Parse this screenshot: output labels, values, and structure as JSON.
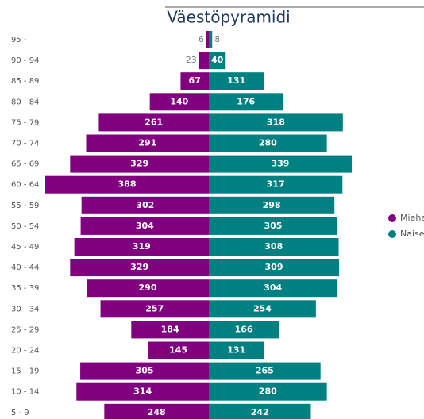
{
  "chart_data": {
    "type": "bar",
    "orientation": "diverging",
    "title": "Väestöpyramidi",
    "categories": [
      "95 -",
      "90 - 94",
      "85 - 89",
      "80 - 84",
      "75 - 79",
      "70 - 74",
      "65 - 69",
      "60 - 64",
      "55 - 59",
      "50 - 54",
      "45 - 49",
      "40 - 44",
      "35 - 39",
      "30 - 34",
      "25 - 29",
      "20 - 24",
      "15 - 19",
      "10 - 14",
      "5 - 9"
    ],
    "series": [
      {
        "name": "Miehet",
        "color": "#800080",
        "side": "left",
        "values": [
          6,
          23,
          67,
          140,
          261,
          291,
          329,
          388,
          302,
          304,
          319,
          329,
          290,
          257,
          184,
          145,
          305,
          314,
          248
        ]
      },
      {
        "name": "Naiset",
        "color": "#008080",
        "side": "right",
        "values": [
          8,
          40,
          131,
          176,
          318,
          280,
          339,
          317,
          298,
          305,
          308,
          309,
          304,
          254,
          166,
          131,
          265,
          280,
          242
        ]
      }
    ],
    "legend": "right"
  }
}
